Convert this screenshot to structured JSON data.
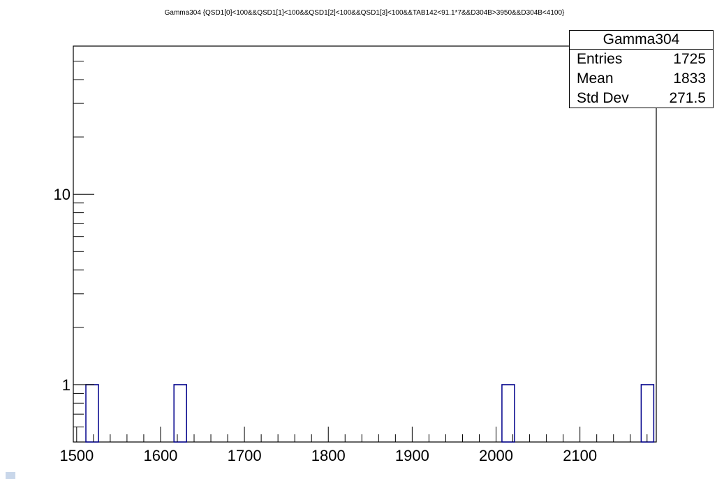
{
  "chart_data": {
    "type": "bar",
    "title": "Gamma304 {QSD1[0]<100&&QSD1[1]<100&&QSD1[2]<100&&QSD1[3]<100&&TAB142<91.1*7&&D304B>3950&&D304B<4100}",
    "xlabel": "",
    "ylabel": "",
    "xlim": [
      1496,
      2191
    ],
    "ylim": [
      0.5,
      60
    ],
    "yscale": "log",
    "x_ticks": [
      1500,
      1600,
      1700,
      1800,
      1900,
      2000,
      2100
    ],
    "y_ticks": [
      1,
      10
    ],
    "bin_width": 15,
    "bars": [
      {
        "x": 1511,
        "value": 1
      },
      {
        "x": 1616,
        "value": 1
      },
      {
        "x": 2007,
        "value": 1
      },
      {
        "x": 2173,
        "value": 1
      }
    ],
    "line_color": "#00008b",
    "grid": false
  },
  "stats": {
    "title": "Gamma304",
    "rows": [
      {
        "label": "Entries",
        "value": "1725"
      },
      {
        "label": "Mean",
        "value": "1833"
      },
      {
        "label": "Std Dev",
        "value": "271.5"
      }
    ]
  }
}
